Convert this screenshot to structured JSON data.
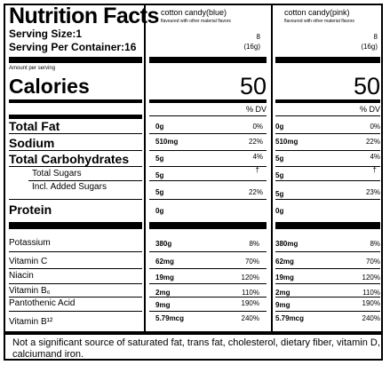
{
  "title": "Nutrition Facts",
  "serving_size": "Serving Size:1",
  "serving_per_container": "Serving Per Container:16",
  "amount_per_serving": "Amount per serving",
  "calories_label": "Calories",
  "columns": [
    {
      "name": "cotton candy(blue)",
      "subtitle": "flavoured with other material flavors",
      "serving_count": "8",
      "serving_weight": "(16g)",
      "calories": "50",
      "dv_header": "% DV"
    },
    {
      "name": "cotton candy(pink)",
      "subtitle": "flavoured with other material flavors",
      "serving_count": "8",
      "serving_weight": "(16g)",
      "calories": "50",
      "dv_header": "% DV"
    }
  ],
  "nutrients": [
    {
      "label": "Total Fat",
      "blue_amt": "0g",
      "blue_pct": "0%",
      "pink_amt": "0g",
      "pink_pct": "0%"
    },
    {
      "label": "Sodium",
      "blue_amt": "510mg",
      "blue_pct": "22%",
      "pink_amt": "510mg",
      "pink_pct": "22%"
    },
    {
      "label": "Total Carbohydrates",
      "blue_amt": "5g",
      "blue_pct": "4%",
      "pink_amt": "5g",
      "pink_pct": "4%"
    },
    {
      "label": "Total Sugars",
      "blue_amt": "5g",
      "blue_pct": "†",
      "pink_amt": "5g",
      "pink_pct": "†"
    },
    {
      "label": "Incl. Added Sugars",
      "blue_amt": "5g",
      "blue_pct": "22%",
      "pink_amt": "5g",
      "pink_pct": "23%"
    },
    {
      "label": "Protein",
      "blue_amt": "0g",
      "blue_pct": "",
      "pink_amt": "0g",
      "pink_pct": ""
    }
  ],
  "minerals": [
    {
      "label": "Potassium",
      "blue_amt": "380g",
      "blue_pct": "8%",
      "pink_amt": "380mg",
      "pink_pct": "8%"
    },
    {
      "label": "Vitamin C",
      "blue_amt": "62mg",
      "blue_pct": "70%",
      "pink_amt": "62mg",
      "pink_pct": "70%"
    },
    {
      "label": "Niacin",
      "blue_amt": "19mg",
      "blue_pct": "120%",
      "pink_amt": "19mg",
      "pink_pct": "120%"
    },
    {
      "label": "Vitamin B₆",
      "blue_amt": "2mg",
      "blue_pct": "110%",
      "pink_amt": "2mg",
      "pink_pct": "110%"
    },
    {
      "label": "Pantothenic Acid",
      "blue_amt": "9mg",
      "blue_pct": "190%",
      "pink_amt": "9mg",
      "pink_pct": "190%"
    },
    {
      "label": "Vitamin B¹²",
      "blue_amt": "5.79mcg",
      "blue_pct": "240%",
      "pink_amt": "5.79mcg",
      "pink_pct": "240%"
    }
  ],
  "footnote": "Not a significant source of saturated fat, trans fat, cholesterol, dietary fiber, vitamin D, calciumand iron."
}
